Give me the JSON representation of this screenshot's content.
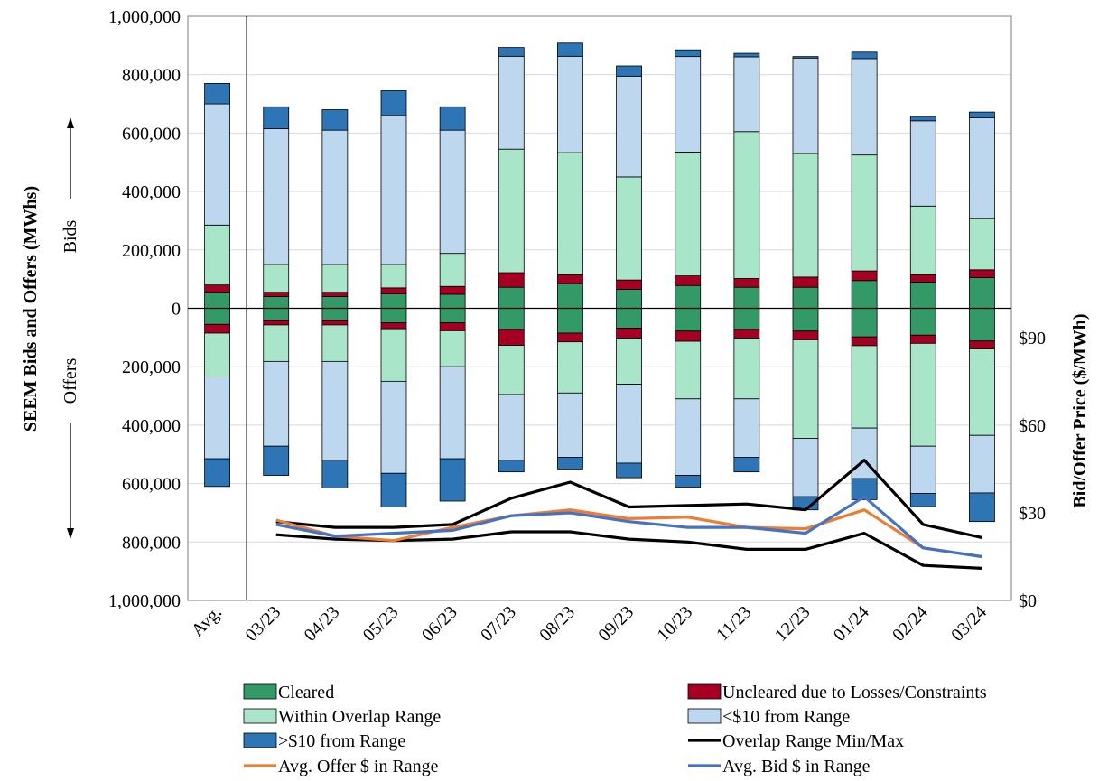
{
  "chart_data": {
    "type": "bar",
    "categories": [
      "Avg.",
      "03/23",
      "04/23",
      "05/23",
      "06/23",
      "07/23",
      "08/23",
      "09/23",
      "10/23",
      "11/23",
      "12/23",
      "01/24",
      "02/24",
      "03/24"
    ],
    "ylabel": "SEEM Bids and Offers (MWhs)",
    "y2label": "Bid/Offer Price ($/MWh)",
    "ylim": [
      -1000000,
      1000000
    ],
    "y2lim": [
      0,
      200
    ],
    "y_ticks": [
      1000000,
      800000,
      600000,
      400000,
      200000,
      0,
      -200000,
      -400000,
      -600000,
      -800000,
      -1000000
    ],
    "y_tick_labels": [
      "1,000,000",
      "800,000",
      "600,000",
      "400,000",
      "200,000",
      "0",
      "200,000",
      "400,000",
      "600,000",
      "800,000",
      "1,000,000"
    ],
    "y2_ticks": [
      0,
      30,
      60,
      90
    ],
    "y2_tick_labels": [
      "$0",
      "$30",
      "$60",
      "$90"
    ],
    "bids_label": "Bids",
    "offers_label": "Offers",
    "grid": true,
    "legend_position": "bottom",
    "stacked_series": [
      {
        "name": "Cleared",
        "color": "#339966",
        "bids": [
          55000,
          40000,
          40000,
          50000,
          48000,
          72000,
          85000,
          65000,
          78000,
          72000,
          72000,
          95000,
          90000,
          105000
        ],
        "offers": [
          55000,
          40000,
          40000,
          50000,
          50000,
          72000,
          85000,
          68000,
          78000,
          72000,
          78000,
          98000,
          92000,
          112000
        ]
      },
      {
        "name": "Uncleared due to Losses/Constraints",
        "color": "#A50021",
        "bids": [
          25000,
          15000,
          15000,
          20000,
          27000,
          50000,
          30000,
          32000,
          33000,
          30000,
          35000,
          33000,
          25000,
          27000
        ],
        "offers": [
          30000,
          17000,
          17000,
          20000,
          27000,
          55000,
          30000,
          34000,
          35000,
          30000,
          30000,
          30000,
          28000,
          25000
        ]
      },
      {
        "name": "Within Overlap Range",
        "color": "#A9E5C8",
        "bids": [
          205000,
          95000,
          95000,
          80000,
          113000,
          423000,
          418000,
          353000,
          424000,
          503000,
          423000,
          397000,
          235000,
          175000
        ],
        "offers": [
          150000,
          125000,
          125000,
          180000,
          123000,
          168000,
          175000,
          158000,
          197000,
          208000,
          337000,
          282000,
          352000,
          298000
        ]
      },
      {
        "name": "<$10 from Range",
        "color": "#BDD7EE",
        "bids": [
          415000,
          465000,
          460000,
          510000,
          422000,
          318000,
          330000,
          345000,
          327000,
          256000,
          327000,
          330000,
          292000,
          345000
        ],
        "offers": [
          280000,
          290000,
          338000,
          315000,
          315000,
          225000,
          220000,
          270000,
          262000,
          200000,
          200000,
          173000,
          162000,
          197000
        ]
      },
      {
        "name": ">$10 from Range",
        "color": "#2E75B6",
        "bids": [
          70000,
          75000,
          70000,
          85000,
          80000,
          30000,
          45000,
          35000,
          23000,
          12000,
          5000,
          22000,
          15000,
          20000
        ],
        "offers": [
          95000,
          100000,
          95000,
          115000,
          145000,
          40000,
          40000,
          50000,
          40000,
          50000,
          45000,
          72000,
          45000,
          98000
        ]
      }
    ],
    "line_series": [
      {
        "name": "Overlap Range Min/Max",
        "color": "#000000",
        "min": [
          null,
          22.5,
          21,
          20.5,
          21,
          23.5,
          23.5,
          21,
          20,
          17.5,
          17.5,
          23,
          12,
          11
        ],
        "max": [
          null,
          27,
          25,
          25,
          26,
          35,
          40.5,
          32,
          32.5,
          33,
          31,
          48,
          26,
          21.5
        ]
      },
      {
        "name": "Avg. Offer $ in Range",
        "color": "#ED7D31",
        "values": [
          null,
          27.5,
          22,
          20.5,
          25,
          29,
          31,
          28,
          28.5,
          25,
          24.5,
          31,
          18,
          15
        ]
      },
      {
        "name": "Avg. Bid $ in Range",
        "color": "#4472C4",
        "values": [
          null,
          26,
          22,
          23,
          24,
          29,
          30,
          27,
          25,
          25,
          23,
          35.5,
          18,
          15
        ]
      }
    ]
  }
}
